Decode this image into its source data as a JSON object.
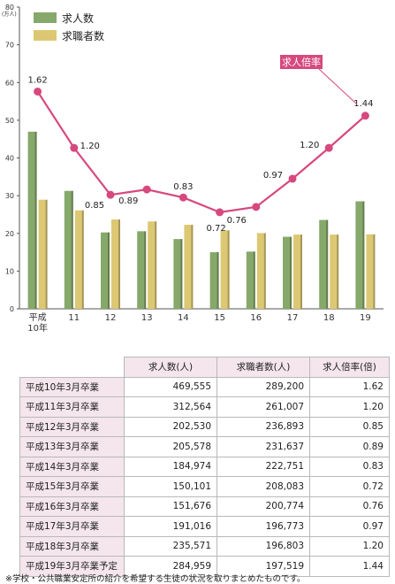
{
  "chart_data": {
    "type": "bar+line",
    "categories": [
      "平成\n10年",
      "11",
      "12",
      "13",
      "14",
      "15",
      "16",
      "17",
      "18",
      "19"
    ],
    "y_unit": "(万人)",
    "ylim": [
      0,
      80
    ],
    "yticks": [
      0,
      10,
      20,
      30,
      40,
      50,
      60,
      70,
      80
    ],
    "series": [
      {
        "name": "求人数",
        "type": "bar",
        "color": "#86a86a",
        "values": [
          46.96,
          31.26,
          20.25,
          20.56,
          18.5,
          15.01,
          15.17,
          19.1,
          23.56,
          28.5
        ]
      },
      {
        "name": "求職者数",
        "type": "bar",
        "color": "#dcc873",
        "values": [
          28.92,
          26.1,
          23.69,
          23.16,
          22.28,
          20.81,
          20.08,
          19.68,
          19.68,
          19.75
        ]
      },
      {
        "name": "求人倍率",
        "type": "line",
        "color": "#d6497f",
        "values": [
          1.62,
          1.2,
          0.85,
          0.89,
          0.83,
          0.72,
          0.76,
          0.97,
          1.2,
          1.44
        ],
        "labels": [
          "1.62",
          "1.20",
          "0.85",
          "0.89",
          "0.83",
          "0.72",
          "0.76",
          "0.97",
          "1.20",
          "1.44"
        ]
      }
    ],
    "ratio_axis_max": 2.25
  },
  "table": {
    "headers": [
      "求人数(人)",
      "求職者数(人)",
      "求人倍率(倍)"
    ],
    "rows": [
      [
        "平成10年3月卒業",
        "469,555",
        "289,200",
        "1.62"
      ],
      [
        "平成11年3月卒業",
        "312,564",
        "261,007",
        "1.20"
      ],
      [
        "平成12年3月卒業",
        "202,530",
        "236,893",
        "0.85"
      ],
      [
        "平成13年3月卒業",
        "205,578",
        "231,637",
        "0.89"
      ],
      [
        "平成14年3月卒業",
        "184,974",
        "222,751",
        "0.83"
      ],
      [
        "平成15年3月卒業",
        "150,101",
        "208,083",
        "0.72"
      ],
      [
        "平成16年3月卒業",
        "151,676",
        "200,774",
        "0.76"
      ],
      [
        "平成17年3月卒業",
        "191,016",
        "196,773",
        "0.97"
      ],
      [
        "平成18年3月卒業",
        "235,571",
        "196,803",
        "1.20"
      ],
      [
        "平成19年3月卒業予定",
        "284,959",
        "197,519",
        "1.44"
      ]
    ]
  },
  "note": "※学校・公共職業安定所の紹介を希望する生徒の状況を取りまとめたものです。"
}
